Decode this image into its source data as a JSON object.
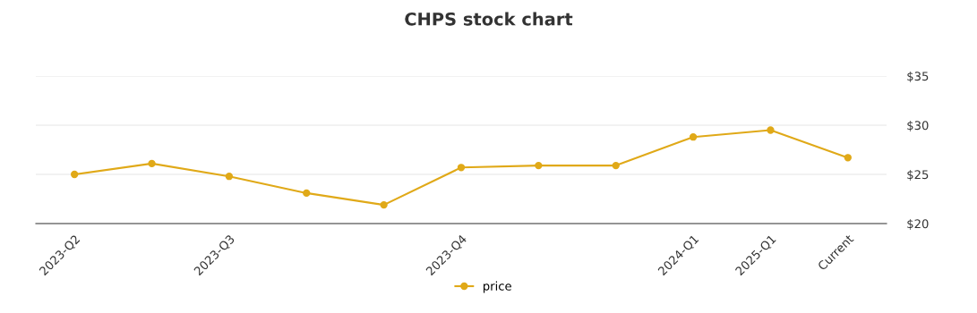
{
  "chart_data": {
    "type": "line",
    "title": "CHPS stock chart",
    "categories": [
      "2023-Q2",
      null,
      "2023-Q3",
      null,
      null,
      "2023-Q4",
      null,
      null,
      "2024-Q1",
      "2025-Q1",
      "Current"
    ],
    "series": [
      {
        "name": "price",
        "color": "#e0a918",
        "values": [
          25.0,
          26.1,
          24.8,
          23.1,
          21.9,
          25.7,
          25.9,
          25.9,
          28.8,
          29.5,
          26.7
        ]
      }
    ],
    "ylim": [
      20,
      35
    ],
    "yticks": [
      {
        "value": 20,
        "label": "$20"
      },
      {
        "value": 25,
        "label": "$25"
      },
      {
        "value": 30,
        "label": "$30"
      },
      {
        "value": 35,
        "label": "$35"
      }
    ],
    "grid": "y",
    "legend": "bottom",
    "marker": "circle",
    "line_style": "solid"
  }
}
